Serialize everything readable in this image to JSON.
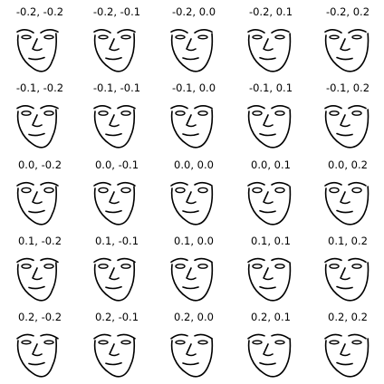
{
  "grid": {
    "rows": [
      {
        "row_value": -0.2,
        "faces": [
          {
            "label": "-0.2, -0.2",
            "p1": -0.2,
            "p2": -0.2
          },
          {
            "label": "-0.2, -0.1",
            "p1": -0.2,
            "p2": -0.1
          },
          {
            "label": "-0.2, 0.0",
            "p1": -0.2,
            "p2": 0.0
          },
          {
            "label": "-0.2, 0.1",
            "p1": -0.2,
            "p2": 0.1
          },
          {
            "label": "-0.2, 0.2",
            "p1": -0.2,
            "p2": 0.2
          }
        ]
      },
      {
        "row_value": -0.1,
        "faces": [
          {
            "label": "-0.1, -0.2",
            "p1": -0.1,
            "p2": -0.2
          },
          {
            "label": "-0.1, -0.1",
            "p1": -0.1,
            "p2": -0.1
          },
          {
            "label": "-0.1, 0.0",
            "p1": -0.1,
            "p2": 0.0
          },
          {
            "label": "-0.1, 0.1",
            "p1": -0.1,
            "p2": 0.1
          },
          {
            "label": "-0.1, 0.2",
            "p1": -0.1,
            "p2": 0.2
          }
        ]
      },
      {
        "row_value": 0.0,
        "faces": [
          {
            "label": "0.0, -0.2",
            "p1": 0.0,
            "p2": -0.2
          },
          {
            "label": "0.0, -0.1",
            "p1": 0.0,
            "p2": -0.1
          },
          {
            "label": "0.0, 0.0",
            "p1": 0.0,
            "p2": 0.0
          },
          {
            "label": "0.0, 0.1",
            "p1": 0.0,
            "p2": 0.1
          },
          {
            "label": "0.0, 0.2",
            "p1": 0.0,
            "p2": 0.2
          }
        ]
      },
      {
        "row_value": 0.1,
        "faces": [
          {
            "label": "0.1, -0.2",
            "p1": 0.1,
            "p2": -0.2
          },
          {
            "label": "0.1, -0.1",
            "p1": 0.1,
            "p2": -0.1
          },
          {
            "label": "0.1, 0.0",
            "p1": 0.1,
            "p2": 0.0
          },
          {
            "label": "0.1, 0.1",
            "p1": 0.1,
            "p2": 0.1
          },
          {
            "label": "0.1, 0.2",
            "p1": 0.1,
            "p2": 0.2
          }
        ]
      },
      {
        "row_value": 0.2,
        "faces": [
          {
            "label": "0.2, -0.2",
            "p1": 0.2,
            "p2": -0.2
          },
          {
            "label": "0.2, -0.1",
            "p1": 0.2,
            "p2": -0.1
          },
          {
            "label": "0.2, 0.0",
            "p1": 0.2,
            "p2": 0.0
          },
          {
            "label": "0.2, 0.1",
            "p1": 0.2,
            "p2": 0.1
          },
          {
            "label": "0.2, 0.2",
            "p1": 0.2,
            "p2": 0.2
          }
        ]
      }
    ]
  },
  "colors": {
    "background": "#ffffff",
    "stroke": "#000000",
    "label": "#000000"
  }
}
